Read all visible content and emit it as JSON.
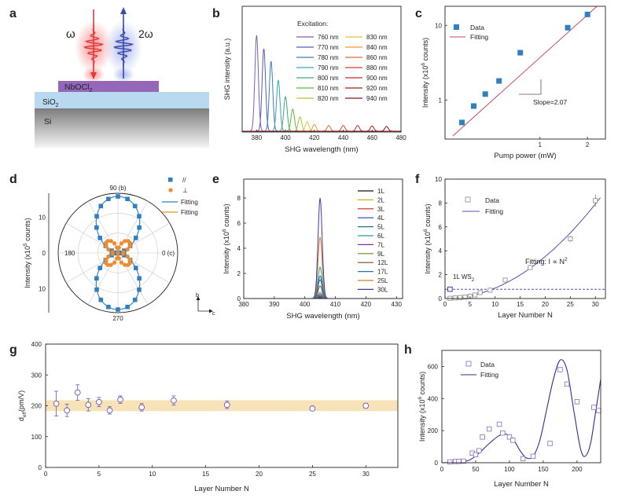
{
  "colors": {
    "panel_bg": "#ffffff",
    "sio2": "#b8d9ef",
    "si_top": "#7d7d7d",
    "nbocl2": "#9467b8",
    "red_beam": "#e03a3a",
    "blue_beam": "#3e4aa8",
    "data_blue": "#2f7fc1",
    "fit_red": "#c94a5a",
    "orange": "#f08a2a",
    "purple": "#5c4bb0",
    "band": "#f8e2b8"
  },
  "chart_data": [
    {
      "panel": "a",
      "type": "diagram",
      "labels": {
        "omega": "ω",
        "two_omega": "2ω",
        "flake": "NbOCl",
        "flake_sub": "2",
        "substrate": "SiO",
        "substrate_sub": "2",
        "base": "Si"
      }
    },
    {
      "panel": "b",
      "type": "line",
      "xlabel": "SHG wavelength (nm)",
      "ylabel": "SHG intensity (a.u.)",
      "xlim": [
        370,
        480
      ],
      "xticks": [
        380,
        400,
        420,
        440,
        460,
        480
      ],
      "legend_title": "Excitation:",
      "series": [
        {
          "name": "760 nm",
          "center": 380,
          "peak": 1.0,
          "color": "#7b5fb8"
        },
        {
          "name": "770 nm",
          "center": 385,
          "peak": 0.86,
          "color": "#5060b0"
        },
        {
          "name": "780 nm",
          "center": 390,
          "peak": 0.73,
          "color": "#3c7cc0"
        },
        {
          "name": "790 nm",
          "center": 395,
          "peak": 0.53,
          "color": "#3aa0c0"
        },
        {
          "name": "800 nm",
          "center": 400,
          "peak": 0.36,
          "color": "#3aaa7a"
        },
        {
          "name": "810 nm",
          "center": 405,
          "peak": 0.23,
          "color": "#5cba3c"
        },
        {
          "name": "820 nm",
          "center": 410,
          "peak": 0.15,
          "color": "#a6c83a"
        },
        {
          "name": "830 nm",
          "center": 415,
          "peak": 0.1,
          "color": "#e0c23a"
        },
        {
          "name": "840 nm",
          "center": 420,
          "peak": 0.07,
          "color": "#f09a2a"
        },
        {
          "name": "860 nm",
          "center": 430,
          "peak": 0.06,
          "color": "#e06a2a"
        },
        {
          "name": "880 nm",
          "center": 440,
          "peak": 0.06,
          "color": "#d8402a"
        },
        {
          "name": "900 nm",
          "center": 450,
          "peak": 0.06,
          "color": "#c42a2a"
        },
        {
          "name": "920 nm",
          "center": 460,
          "peak": 0.055,
          "color": "#a82020"
        },
        {
          "name": "940 nm",
          "center": 470,
          "peak": 0.05,
          "color": "#801818"
        }
      ]
    },
    {
      "panel": "c",
      "type": "scatter",
      "xlabel": "Pump power (mW)",
      "ylabel": "Intensity (x10",
      "ylabel_sup": "6",
      "ylabel_tail": "counts)",
      "xscale": "log",
      "yscale": "log",
      "xlim": [
        0.25,
        2.6
      ],
      "ylim": [
        0.3,
        18
      ],
      "xticks": [
        {
          "v": 1,
          "label": "1"
        },
        {
          "v": 2,
          "label": "2"
        }
      ],
      "yticks": [
        {
          "v": 1,
          "label": "1"
        },
        {
          "v": 10,
          "label": "10"
        }
      ],
      "legend": [
        "Data",
        "Fitting"
      ],
      "annotation": "Slope=2.07",
      "points": [
        [
          0.32,
          0.5
        ],
        [
          0.38,
          0.83
        ],
        [
          0.45,
          1.2
        ],
        [
          0.55,
          1.8
        ],
        [
          0.75,
          4.3
        ],
        [
          1.5,
          9.3
        ],
        [
          2.0,
          14.0
        ]
      ],
      "fit": [
        [
          0.28,
          0.33
        ],
        [
          2.3,
          18.0
        ]
      ]
    },
    {
      "panel": "d",
      "type": "polar",
      "ylabel": "Intensity (x10",
      "ylabel_sup": "5",
      "ylabel_tail": "counts)",
      "angle_labels": {
        "top": "90 (b)",
        "left": "180",
        "right": "0 (c)",
        "bottom": "270"
      },
      "radial_ticks": [
        "10",
        "0",
        "10"
      ],
      "legend": [
        "//",
        "⊥",
        "Fitting",
        "Fitting"
      ],
      "axis_labels": {
        "b": "b",
        "c": "c"
      },
      "rmax": 15,
      "parallel_amp": 14.2,
      "perp_amp": 4.0,
      "parallel_points_deg": [
        0,
        10,
        20,
        30,
        40,
        50,
        60,
        70,
        80,
        90,
        100,
        110,
        120,
        130,
        140,
        150,
        160,
        170,
        180,
        190,
        200,
        210,
        220,
        230,
        240,
        250,
        260,
        270,
        280,
        290,
        300,
        310,
        320,
        330,
        340,
        350
      ],
      "perp_points_deg": [
        0,
        10,
        20,
        30,
        40,
        50,
        60,
        70,
        80,
        90,
        100,
        110,
        120,
        130,
        140,
        150,
        160,
        170,
        180,
        190,
        200,
        210,
        220,
        230,
        240,
        250,
        260,
        270,
        280,
        290,
        300,
        310,
        320,
        330,
        340,
        350
      ]
    },
    {
      "panel": "e",
      "type": "line",
      "xlabel": "SHG wavelength (nm)",
      "ylabel": "Intensity (x10",
      "ylabel_sup": "6",
      "ylabel_tail": "counts)",
      "xlim": [
        380,
        432
      ],
      "xticks": [
        380,
        390,
        400,
        410,
        420,
        430
      ],
      "ylim": [
        0,
        9.5
      ],
      "yticks": [
        0,
        2,
        4,
        6,
        8
      ],
      "center": 405,
      "series": [
        {
          "name": "1L",
          "peak": 0.06,
          "color": "#111111"
        },
        {
          "name": "2L",
          "peak": 0.1,
          "color": "#c8b020"
        },
        {
          "name": "3L",
          "peak": 0.12,
          "color": "#d02020"
        },
        {
          "name": "4L",
          "peak": 0.15,
          "color": "#2040c0"
        },
        {
          "name": "5L",
          "peak": 0.2,
          "color": "#1a7a7a"
        },
        {
          "name": "6L",
          "peak": 0.25,
          "color": "#2a9aa0"
        },
        {
          "name": "7L",
          "peak": 0.35,
          "color": "#8030a0"
        },
        {
          "name": "9L",
          "peak": 0.5,
          "color": "#6a8a20"
        },
        {
          "name": "12L",
          "peak": 1.0,
          "color": "#7a4a20"
        },
        {
          "name": "17L",
          "peak": 1.8,
          "color": "#2a6abf"
        },
        {
          "name": "25L",
          "peak": 4.9,
          "color": "#e07a20"
        },
        {
          "name": "30L",
          "peak": 8.0,
          "color": "#3a3aa0"
        }
      ],
      "extra_peaks": [
        2.5,
        1.5
      ]
    },
    {
      "panel": "f",
      "type": "scatter",
      "xlabel": "Layer Number N",
      "ylabel": "Intensity (x10",
      "ylabel_sup": "6",
      "ylabel_tail": "counts)",
      "xlim": [
        0,
        32
      ],
      "ylim": [
        0,
        10
      ],
      "xticks": [
        0,
        5,
        10,
        15,
        20,
        25,
        30
      ],
      "yticks": [
        0,
        2,
        4,
        6,
        8,
        10
      ],
      "legend": [
        "Data",
        "Fitting"
      ],
      "fit_label": "Fitting: I ∝ N",
      "fit_sup": "2",
      "ref_label": "1L WS",
      "ref_sub": "2",
      "ref_value": 0.78,
      "points": [
        [
          1,
          0.02
        ],
        [
          2,
          0.05
        ],
        [
          3,
          0.08
        ],
        [
          4,
          0.13
        ],
        [
          5,
          0.2
        ],
        [
          6,
          0.3
        ],
        [
          7,
          0.5
        ],
        [
          9,
          0.7
        ],
        [
          12,
          1.55
        ],
        [
          17,
          2.6
        ],
        [
          25,
          5.0
        ],
        [
          30,
          8.2
        ]
      ],
      "errors": [
        0.05,
        0.05,
        0.05,
        0.05,
        0.08,
        0.08,
        0.1,
        0.1,
        0.15,
        0.2,
        0.25,
        0.5
      ],
      "fit_coef": 0.0088
    },
    {
      "panel": "g",
      "type": "scatter",
      "xlabel": "Layer Number N",
      "ylabel": "d",
      "ylabel_sub": "eff",
      "ylabel_tail": "(pm/V)",
      "xlim": [
        0,
        33
      ],
      "ylim": [
        0,
        400
      ],
      "xticks": [
        0,
        5,
        10,
        15,
        20,
        25,
        30
      ],
      "yticks": [
        0,
        100,
        200,
        300,
        400
      ],
      "band": [
        183,
        218
      ],
      "points": [
        [
          1,
          207
        ],
        [
          2,
          185
        ],
        [
          3,
          243
        ],
        [
          4,
          203
        ],
        [
          5,
          212
        ],
        [
          6,
          185
        ],
        [
          7,
          220
        ],
        [
          9,
          195
        ],
        [
          12,
          217
        ],
        [
          17,
          203
        ],
        [
          25,
          191
        ],
        [
          30,
          200
        ]
      ],
      "errors": [
        40,
        20,
        25,
        20,
        15,
        12,
        12,
        12,
        15,
        12,
        5,
        8
      ]
    },
    {
      "panel": "h",
      "type": "scatter",
      "xlabel": "Layer Number N",
      "ylabel": "Intensity (x10",
      "ylabel_sup": "6",
      "ylabel_tail": "counts)",
      "xlim": [
        0,
        235
      ],
      "ylim": [
        0,
        700
      ],
      "xticks": [
        0,
        50,
        100,
        150,
        200
      ],
      "yticks": [
        0,
        200,
        400,
        600
      ],
      "legend": [
        "Data",
        "Fitting"
      ],
      "points": [
        [
          12,
          5
        ],
        [
          20,
          8
        ],
        [
          25,
          8
        ],
        [
          32,
          10
        ],
        [
          45,
          60
        ],
        [
          50,
          50
        ],
        [
          55,
          75
        ],
        [
          60,
          160
        ],
        [
          70,
          210
        ],
        [
          85,
          240
        ],
        [
          90,
          185
        ],
        [
          100,
          160
        ],
        [
          105,
          140
        ],
        [
          120,
          25
        ],
        [
          135,
          40
        ],
        [
          160,
          120
        ],
        [
          175,
          580
        ],
        [
          185,
          490
        ],
        [
          200,
          380
        ],
        [
          225,
          345
        ],
        [
          232,
          325
        ]
      ],
      "fit": [
        [
          0,
          0
        ],
        [
          20,
          2
        ],
        [
          40,
          15
        ],
        [
          55,
          60
        ],
        [
          70,
          120
        ],
        [
          85,
          170
        ],
        [
          95,
          178
        ],
        [
          105,
          150
        ],
        [
          115,
          80
        ],
        [
          125,
          30
        ],
        [
          135,
          40
        ],
        [
          145,
          140
        ],
        [
          155,
          330
        ],
        [
          165,
          520
        ],
        [
          175,
          640
        ],
        [
          185,
          580
        ],
        [
          195,
          330
        ],
        [
          205,
          90
        ],
        [
          212,
          40
        ],
        [
          220,
          120
        ],
        [
          228,
          330
        ],
        [
          235,
          520
        ]
      ]
    }
  ]
}
